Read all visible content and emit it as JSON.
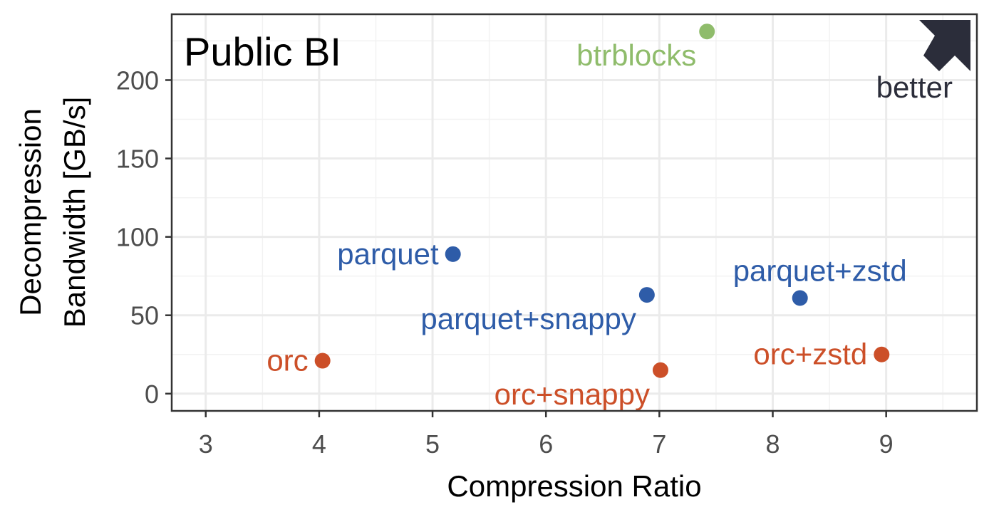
{
  "chart_data": {
    "type": "scatter",
    "title": "Public BI",
    "xlabel": "Compression Ratio",
    "ylabel_lines": [
      "Decompression",
      "Bandwidth [GB/s]"
    ],
    "xlim": [
      2.7,
      9.8
    ],
    "ylim": [
      -11,
      242
    ],
    "x_ticks": [
      3,
      4,
      5,
      6,
      7,
      8,
      9
    ],
    "y_ticks": [
      0,
      50,
      100,
      150,
      200
    ],
    "grid": true,
    "colors": {
      "btrblocks": "#8fbc6b",
      "parquet": "#2e5ca8",
      "orc": "#cc4f28",
      "annotation": "#2b2d3a"
    },
    "points": [
      {
        "label": "btrblocks",
        "x": 7.42,
        "y": 231,
        "color_key": "btrblocks",
        "label_pos": "below-left"
      },
      {
        "label": "parquet",
        "x": 5.18,
        "y": 89,
        "color_key": "parquet",
        "label_pos": "left"
      },
      {
        "label": "parquet+snappy",
        "x": 6.89,
        "y": 63,
        "color_key": "parquet",
        "label_pos": "below-left"
      },
      {
        "label": "parquet+zstd",
        "x": 8.24,
        "y": 61,
        "color_key": "parquet",
        "label_pos": "above"
      },
      {
        "label": "orc",
        "x": 4.03,
        "y": 21,
        "color_key": "orc",
        "label_pos": "left"
      },
      {
        "label": "orc+snappy",
        "x": 7.01,
        "y": 15,
        "color_key": "orc",
        "label_pos": "below-left"
      },
      {
        "label": "orc+zstd",
        "x": 8.96,
        "y": 25,
        "color_key": "orc",
        "label_pos": "left"
      }
    ],
    "annotation": {
      "text": "better",
      "icon": "arrow-up-right-icon"
    }
  }
}
